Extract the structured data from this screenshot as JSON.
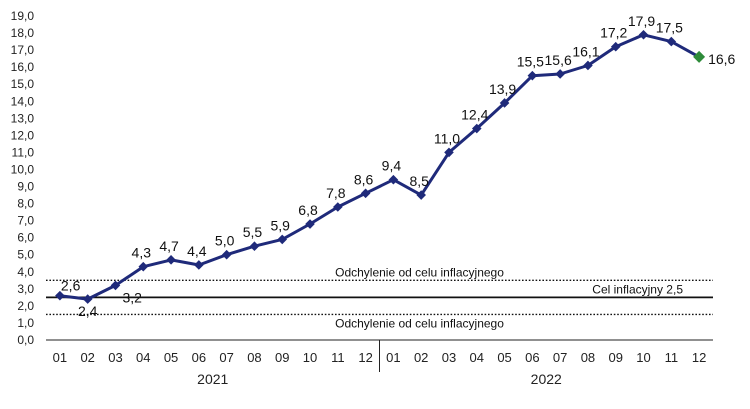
{
  "chart_data": {
    "type": "line",
    "title": "",
    "xlabel": "",
    "ylabel": "",
    "ylim": [
      0,
      19
    ],
    "y_ticks": [
      "0,0",
      "1,0",
      "2,0",
      "3,0",
      "4,0",
      "5,0",
      "6,0",
      "7,0",
      "8,0",
      "9,0",
      "10,0",
      "11,0",
      "12,0",
      "13,0",
      "14,0",
      "15,0",
      "16,0",
      "17,0",
      "18,0",
      "19,0"
    ],
    "categories": [
      "01",
      "02",
      "03",
      "04",
      "05",
      "06",
      "07",
      "08",
      "09",
      "10",
      "11",
      "12",
      "01",
      "02",
      "03",
      "04",
      "05",
      "06",
      "07",
      "08",
      "09",
      "10",
      "11",
      "12"
    ],
    "years": [
      {
        "label": "2021",
        "from": 0,
        "to": 11
      },
      {
        "label": "2022",
        "from": 12,
        "to": 23
      }
    ],
    "series": [
      {
        "values": [
          2.6,
          2.4,
          3.2,
          4.3,
          4.7,
          4.4,
          5.0,
          5.5,
          5.9,
          6.8,
          7.8,
          8.6,
          9.4,
          8.5,
          11.0,
          12.4,
          13.9,
          15.5,
          15.6,
          16.1,
          17.2,
          17.9,
          17.5,
          16.6
        ],
        "labels": [
          "2,6",
          "2,4",
          "3,2",
          "4,3",
          "4,7",
          "4,4",
          "5,0",
          "5,5",
          "5,9",
          "6,8",
          "7,8",
          "8,6",
          "9,4",
          "8,5",
          "11,0",
          "12,4",
          "13,9",
          "15,5",
          "15,6",
          "16,1",
          "17,2",
          "17,9",
          "17,5",
          "16,6"
        ],
        "color": "#1f2a7a",
        "last_point_color": "#2e8b3a"
      }
    ],
    "reference_lines": [
      {
        "value": 3.5,
        "style": "dotted",
        "label": "Odchylenie od celu inflacyjnego"
      },
      {
        "value": 2.5,
        "style": "solid",
        "label": "Cel inflacyjny 2,5"
      },
      {
        "value": 1.5,
        "style": "dotted",
        "label": "Odchylenie od celu inflacyjnego"
      }
    ],
    "grid": false,
    "legend": "none"
  }
}
